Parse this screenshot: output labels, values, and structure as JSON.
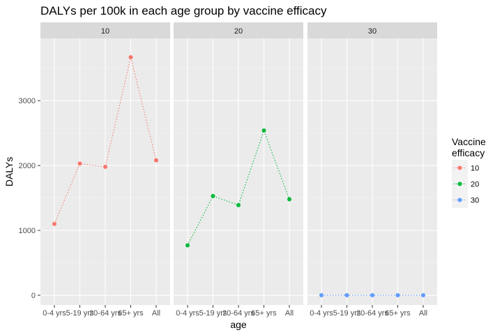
{
  "chart_data": {
    "type": "line",
    "title": "DALYs per 100k in each age group by vaccine efficacy",
    "xlabel": "age",
    "ylabel": "DALYs",
    "categories": [
      "0-4 yrs",
      "5-19 yrs",
      "20-64 yrs",
      "65+ yrs",
      "All"
    ],
    "y_ticks": [
      0,
      1000,
      2000,
      3000
    ],
    "ylim": [
      -150,
      3960
    ],
    "grid": true,
    "line_style": "dotted",
    "legend": {
      "title_lines": [
        "Vaccine",
        "efficacy"
      ],
      "placement": "right"
    },
    "panels": [
      {
        "strip": "10",
        "series_name": "10",
        "color": "#F8766D",
        "values": [
          1100,
          2030,
          1980,
          3670,
          2080
        ]
      },
      {
        "strip": "20",
        "series_name": "20",
        "color": "#00BA38",
        "values": [
          770,
          1530,
          1390,
          2540,
          1480
        ]
      },
      {
        "strip": "30",
        "series_name": "30",
        "color": "#619CFF",
        "values": [
          0,
          0,
          0,
          0,
          0
        ]
      }
    ]
  }
}
